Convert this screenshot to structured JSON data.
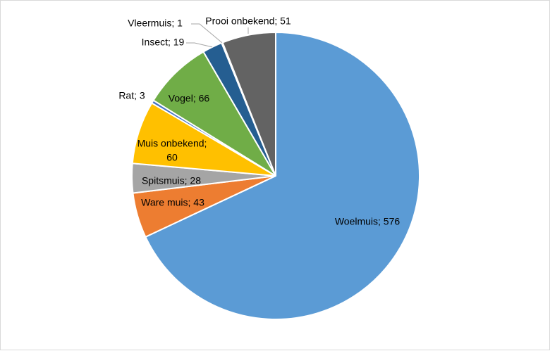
{
  "chart_data": {
    "type": "pie",
    "title": "",
    "slices": [
      {
        "label": "Woelmuis",
        "value": 576,
        "text": "Woelmuis; 576",
        "color": "#5b9bd5"
      },
      {
        "label": "Ware muis",
        "value": 43,
        "text": "Ware muis; 43",
        "color": "#ed7d31"
      },
      {
        "label": "Spitsmuis",
        "value": 28,
        "text": "Spitsmuis; 28",
        "color": "#a5a5a5"
      },
      {
        "label": "Muis onbekend",
        "value": 60,
        "text": "Muis onbekend;",
        "text2": "60",
        "color": "#ffc000"
      },
      {
        "label": "Rat",
        "value": 3,
        "text": "Rat; 3",
        "color": "#4472c4"
      },
      {
        "label": "Vogel",
        "value": 66,
        "text": "Vogel; 66",
        "color": "#70ad47"
      },
      {
        "label": "Insect",
        "value": 19,
        "text": "Insect; 19",
        "color": "#255e91"
      },
      {
        "label": "Vleermuis",
        "value": 1,
        "text": "Vleermuis; 1",
        "color": "#9e480e"
      },
      {
        "label": "Prooi onbekend",
        "value": 51,
        "text": "Prooi onbekend; 51",
        "color": "#636363"
      }
    ],
    "start": "top (12 o'clock), clockwise",
    "legend": "none (data labels on slices)"
  }
}
